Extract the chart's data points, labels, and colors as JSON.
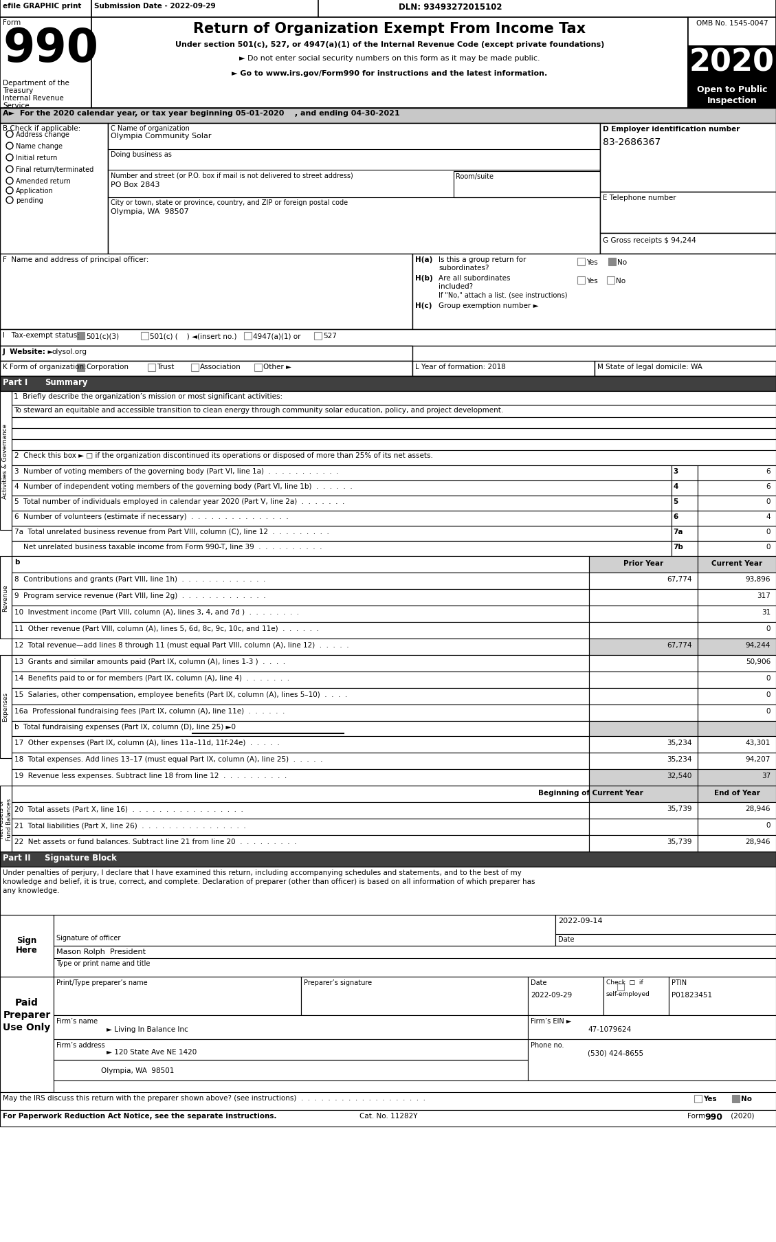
{
  "efile_text": "efile GRAPHIC print",
  "submission_date": "Submission Date - 2022-09-29",
  "dln": "DLN: 93493272015102",
  "form_number": "990",
  "form_label": "Form",
  "title": "Return of Organization Exempt From Income Tax",
  "subtitle1": "Under section 501(c), 527, or 4947(a)(1) of the Internal Revenue Code (except private foundations)",
  "subtitle2": "► Do not enter social security numbers on this form as it may be made public.",
  "subtitle3": "► Go to www.irs.gov/Form990 for instructions and the latest information.",
  "dept1": "Department of the",
  "dept2": "Treasury",
  "dept3": "Internal Revenue",
  "dept4": "Service",
  "omb": "OMB No. 1545-0047",
  "year": "2020",
  "open_public": "Open to Public",
  "inspection": "Inspection",
  "line_a": "A►  For the 2020 calendar year, or tax year beginning 05-01-2020    , and ending 04-30-2021",
  "b_label": "B Check if applicable:",
  "check_items": [
    "Address change",
    "Name change",
    "Initial return",
    "Final return/terminated",
    "Amended return",
    "Application",
    "pending"
  ],
  "c_label": "C Name of organization",
  "org_name": "Olympia Community Solar",
  "dba_label": "Doing business as",
  "street_label": "Number and street (or P.O. box if mail is not delivered to street address)",
  "room_label": "Room/suite",
  "street_val": "PO Box 2843",
  "city_label": "City or town, state or province, country, and ZIP or foreign postal code",
  "city_val": "Olympia, WA  98507",
  "d_label": "D Employer identification number",
  "ein": "83-2686367",
  "e_label": "E Telephone number",
  "gross_label": "G Gross receipts $ 94,244",
  "f_label": "F  Name and address of principal officer:",
  "ha_label": "H(a)",
  "ha_text": "Is this a group return for",
  "ha_text2": "subordinates?",
  "hb_label": "H(b)",
  "hb_text": "Are all subordinates",
  "hb_text2": "included?",
  "hc_label": "H(c)",
  "hc_text": "Group exemption number ►",
  "if_no": "If \"No,\" attach a list. (see instructions)",
  "i_label": "I   Tax-exempt status:",
  "tax_exempt_501c3": "501(c)(3)",
  "tax_exempt_501c": "501(c) (    ) ◄(insert no.)",
  "tax_exempt_4947": "4947(a)(1) or",
  "tax_exempt_527": "527",
  "j_label": "J  Website: ►",
  "website": "olysol.org",
  "k_label": "K Form of organization:",
  "k_corporation": "Corporation",
  "k_trust": "Trust",
  "k_assoc": "Association",
  "k_other": "Other ►",
  "l_label": "L Year of formation: 2018",
  "m_label": "M State of legal domicile: WA",
  "part1_label": "Part I",
  "part1_title": "Summary",
  "line1_label": "1  Briefly describe the organization’s mission or most significant activities:",
  "line1_text": "To steward an equitable and accessible transition to clean energy through community solar education, policy, and project development.",
  "line2_text": "2  Check this box ► □ if the organization discontinued its operations or disposed of more than 25% of its net assets.",
  "line3_text": "3  Number of voting members of the governing body (Part VI, line 1a)  .  .  .  .  .  .  .  .  .  .  .",
  "line3_val": "6",
  "line4_text": "4  Number of independent voting members of the governing body (Part VI, line 1b)  .  .  .  .  .  .",
  "line4_val": "6",
  "line5_text": "5  Total number of individuals employed in calendar year 2020 (Part V, line 2a)  .  .  .  .  .  .  .",
  "line5_val": "0",
  "line6_text": "6  Number of volunteers (estimate if necessary)  .  .  .  .  .  .  .  .  .  .  .  .  .  .  .",
  "line6_val": "4",
  "line7a_text": "7a  Total unrelated business revenue from Part VIII, column (C), line 12  .  .  .  .  .  .  .  .  .",
  "line7a_val": "0",
  "line7b_text": "    Net unrelated business taxable income from Form 990-T, line 39  .  .  .  .  .  .  .  .  .  .",
  "line7b_val": "0",
  "prior_year_label": "Prior Year",
  "current_year_label": "Current Year",
  "line8_text": "8  Contributions and grants (Part VIII, line 1h)  .  .  .  .  .  .  .  .  .  .  .  .  .",
  "line8_prior": "67,774",
  "line8_current": "93,896",
  "line9_text": "9  Program service revenue (Part VIII, line 2g)  .  .  .  .  .  .  .  .  .  .  .  .  .",
  "line9_prior": "",
  "line9_current": "317",
  "line10_text": "10  Investment income (Part VIII, column (A), lines 3, 4, and 7d )  .  .  .  .  .  .  .  .",
  "line10_prior": "",
  "line10_current": "31",
  "line11_text": "11  Other revenue (Part VIII, column (A), lines 5, 6d, 8c, 9c, 10c, and 11e)  .  .  .  .  .  .",
  "line11_prior": "",
  "line11_current": "0",
  "line12_text": "12  Total revenue—add lines 8 through 11 (must equal Part VIII, column (A), line 12)  .  .  .  .  .",
  "line12_prior": "67,774",
  "line12_current": "94,244",
  "line13_text": "13  Grants and similar amounts paid (Part IX, column (A), lines 1-3 )  .  .  .  .",
  "line13_prior": "",
  "line13_current": "50,906",
  "line14_text": "14  Benefits paid to or for members (Part IX, column (A), line 4)  .  .  .  .  .  .  .",
  "line14_prior": "",
  "line14_current": "0",
  "line15_text": "15  Salaries, other compensation, employee benefits (Part IX, column (A), lines 5–10)  .  .  .  .",
  "line15_prior": "",
  "line15_current": "0",
  "line16a_text": "16a  Professional fundraising fees (Part IX, column (A), line 11e)  .  .  .  .  .  .",
  "line16a_prior": "",
  "line16a_current": "0",
  "line16b_text": "b  Total fundraising expenses (Part IX, column (D), line 25) ►0",
  "line17_text": "17  Other expenses (Part IX, column (A), lines 11a–11d, 11f-24e)  .  .  .  .  .",
  "line17_prior": "35,234",
  "line17_current": "43,301",
  "line18_text": "18  Total expenses. Add lines 13–17 (must equal Part IX, column (A), line 25)  .  .  .  .  .",
  "line18_prior": "35,234",
  "line18_current": "94,207",
  "line19_text": "19  Revenue less expenses. Subtract line 18 from line 12  .  .  .  .  .  .  .  .  .  .",
  "line19_prior": "32,540",
  "line19_current": "37",
  "boc_label": "Beginning of Current Year",
  "eoy_label": "End of Year",
  "line20_text": "20  Total assets (Part X, line 16)  .  .  .  .  .  .  .  .  .  .  .  .  .  .  .  .  .",
  "line20_boc": "35,739",
  "line20_eoy": "28,946",
  "line21_text": "21  Total liabilities (Part X, line 26)  .  .  .  .  .  .  .  .  .  .  .  .  .  .  .  .",
  "line21_boc": "",
  "line21_eoy": "0",
  "line22_text": "22  Net assets or fund balances. Subtract line 21 from line 20  .  .  .  .  .  .  .  .  .",
  "line22_boc": "35,739",
  "line22_eoy": "28,946",
  "part2_label": "Part II",
  "part2_title": "Signature Block",
  "sig_para": "Under penalties of perjury, I declare that I have examined this return, including accompanying schedules and statements, and to the best of my\nknowledge and belief, it is true, correct, and complete. Declaration of preparer (other than officer) is based on all information of which preparer has\nany knowledge.",
  "sign_here1": "Sign",
  "sign_here2": "Here",
  "sig_label": "Signature of officer",
  "sig_date_label": "Date",
  "sig_date": "2022-09-14",
  "sig_name": "Mason Rolph  President",
  "sig_title_label": "Type or print name and title",
  "paid_label1": "Paid",
  "paid_label2": "Preparer",
  "paid_label3": "Use Only",
  "prep_name_label": "Print/Type preparer’s name",
  "prep_sig_label": "Preparer’s signature",
  "prep_date_label": "Date",
  "prep_date": "2022-09-29",
  "self_emp_line1": "Check  □  if",
  "self_emp_line2": "self-employed",
  "ptin_label": "PTIN",
  "ptin_val": "P01823451",
  "firms_name_label": "Firm’s name",
  "firms_name_arrow": "► Living In Balance Inc",
  "firms_ein_label": "Firm’s EIN ►",
  "firms_ein_val": "47-1079624",
  "firms_addr_label": "Firm’s address",
  "firms_addr_arrow": "► 120 State Ave NE 1420",
  "firms_city": "Olympia, WA  98501",
  "phone_label": "Phone no.",
  "phone_val": "(530) 424-8655",
  "discuss_text": "May the IRS discuss this return with the preparer shown above? (see instructions)  .  .  .  .  .  .  .  .  .  .  .  .  .  .  .  .  .  .  .",
  "paperwork_text": "For Paperwork Reduction Act Notice, see the separate instructions.",
  "cat_no": "Cat. No. 11282Y",
  "form_footer": "Form 990 (2020)",
  "activities_label": "Activities & Governance",
  "revenue_label": "Revenue",
  "expenses_label": "Expenses",
  "net_assets_label": "Net Assets or\nFund Balances"
}
